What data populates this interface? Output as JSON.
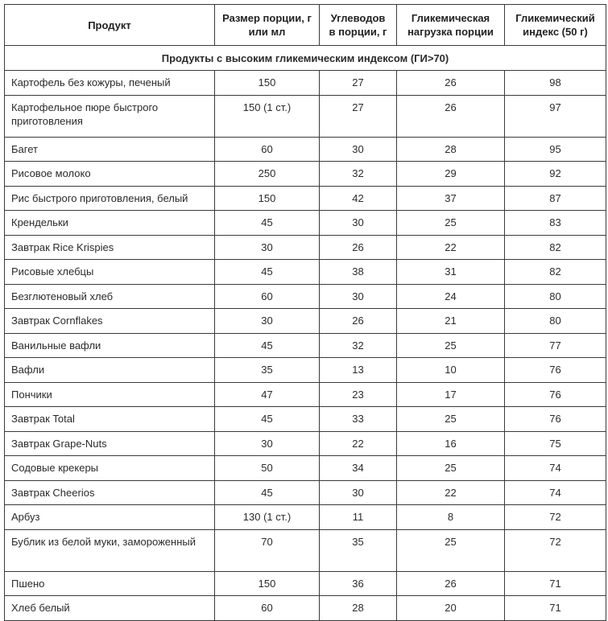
{
  "headers": [
    "Продукт",
    "Размер порции, г или мл",
    "Углеводов в порции, г",
    "Гликемическая нагрузка порции",
    "Гликемический индекс (50 г)"
  ],
  "section_title": "Продукты с высоким гликемическим индексом (ГИ>70)",
  "rows": [
    [
      "Картофель без кожуры, печеный",
      "150",
      "27",
      "26",
      "98"
    ],
    [
      "Картофельное пюре быстрого приготовления",
      "150 (1 ст.)",
      "27",
      "26",
      "97"
    ],
    [
      "Багет",
      "60",
      "30",
      "28",
      "95"
    ],
    [
      "Рисовое молоко",
      "250",
      "32",
      "29",
      "92"
    ],
    [
      "Рис быстрого приготовления, белый",
      "150",
      "42",
      "37",
      "87"
    ],
    [
      "Крендельки",
      "45",
      "30",
      "25",
      "83"
    ],
    [
      "Завтрак Rice Krispies",
      "30",
      "26",
      "22",
      "82"
    ],
    [
      "Рисовые хлебцы",
      "45",
      "38",
      "31",
      "82"
    ],
    [
      "Безглютеновый хлеб",
      "60",
      "30",
      "24",
      "80"
    ],
    [
      "Завтрак Cornflakes",
      "30",
      "26",
      "21",
      "80"
    ],
    [
      "Ванильные вафли",
      "45",
      "32",
      "25",
      "77"
    ],
    [
      "Вафли",
      "35",
      "13",
      "10",
      "76"
    ],
    [
      "Пончики",
      "47",
      "23",
      "17",
      "76"
    ],
    [
      "Завтрак Total",
      "45",
      "33",
      "25",
      "76"
    ],
    [
      "Завтрак Grape-Nuts",
      "30",
      "22",
      "16",
      "75"
    ],
    [
      "Содовые крекеры",
      "50",
      "34",
      "25",
      "74"
    ],
    [
      "Завтрак Cheerios",
      "45",
      "30",
      "22",
      "74"
    ],
    [
      "Арбуз",
      "130 (1 ст.)",
      "11",
      "8",
      "72"
    ],
    [
      "Бублик из белой муки, замороженный",
      "70",
      "35",
      "25",
      "72"
    ],
    [
      "Пшено",
      "150",
      "36",
      "26",
      "71"
    ],
    [
      "Хлеб белый",
      "60",
      "28",
      "20",
      "71"
    ]
  ]
}
